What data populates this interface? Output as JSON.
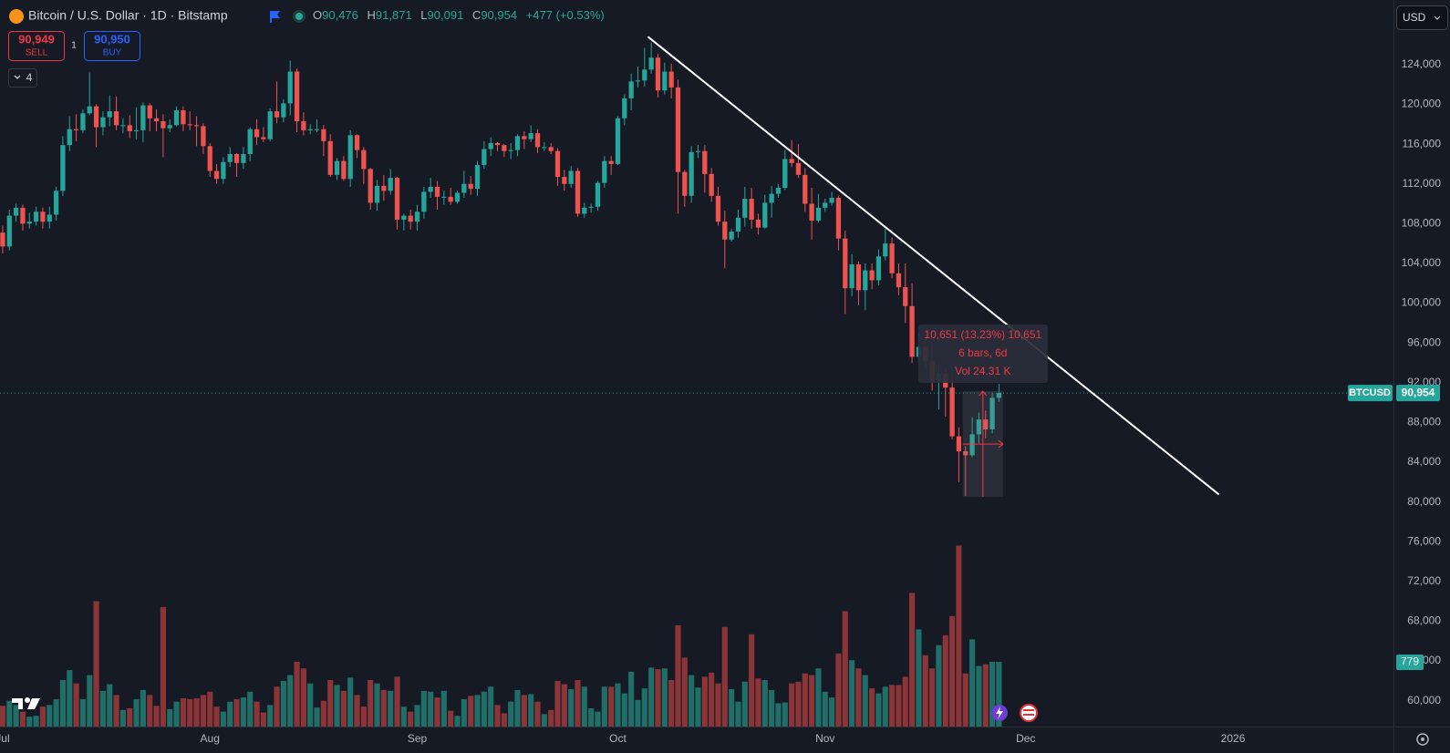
{
  "header": {
    "symbol": "Bitcoin / U.S. Dollar · 1D · Bitstamp",
    "ohlc": [
      {
        "key": "O",
        "label": "90,476"
      },
      {
        "key": "H",
        "label": "91,871"
      },
      {
        "key": "L",
        "label": "90,091"
      },
      {
        "key": "C",
        "label": "90,954"
      }
    ],
    "change": "+477 (+0.53%)",
    "sell": {
      "price": "90,949",
      "label": "SELL"
    },
    "quantity": "1",
    "buy": {
      "price": "90,950",
      "label": "BUY"
    },
    "indicators": "4",
    "currency": "USD"
  },
  "chart_data": {
    "type": "candlestick",
    "open": [
      107100,
      105700,
      108800,
      109600,
      108000,
      108200,
      109200,
      108200,
      108900,
      111300,
      115900,
      117500,
      117400,
      119100,
      119800,
      117700,
      118700,
      119300,
      117900,
      117900,
      117300,
      117400,
      119900,
      118600,
      118300,
      117600,
      117900,
      119400,
      118000,
      117900,
      117800,
      115800,
      113300,
      112500,
      114200,
      115000,
      114100,
      115000,
      117500,
      116700,
      116500,
      119300,
      118700,
      120100,
      123300,
      118300,
      117400,
      117500,
      117500,
      116300,
      112900,
      114300,
      112500,
      116900,
      115400,
      113500,
      110100,
      111800,
      111300,
      112600,
      108400,
      108800,
      108200,
      109200,
      111200,
      111700,
      110700,
      110700,
      110200,
      111100,
      112000,
      111500,
      113900,
      115500,
      116100,
      115900,
      115300,
      115400,
      116800,
      116500,
      117100,
      115700,
      115700,
      115300,
      112700,
      112000,
      113300,
      109000,
      109600,
      109700,
      112100,
      114300,
      114000,
      118600,
      120600,
      122300,
      122400,
      123500,
      124700,
      121400,
      123300,
      121700,
      113200,
      110800,
      115200,
      115300,
      113000,
      110800,
      108200,
      106400,
      107200,
      108600,
      110500,
      108400,
      107600,
      110100,
      111000,
      111600,
      114500,
      114100,
      112900,
      110000,
      108300,
      109600,
      110100,
      110600,
      106500,
      101500,
      103900,
      101300,
      103300,
      102300,
      104700,
      106000,
      103000,
      101600,
      99700,
      94600,
      95600,
      94200,
      92200,
      92900,
      91500,
      86600,
      85100,
      84700,
      86800,
      88300,
      87300,
      90476
    ],
    "high": [
      107800,
      109400,
      110000,
      109900,
      109100,
      109700,
      109600,
      109700,
      111700,
      116800,
      118800,
      119000,
      119500,
      123200,
      120000,
      119300,
      120900,
      120800,
      118600,
      118900,
      119700,
      120200,
      120100,
      119500,
      119000,
      118500,
      119800,
      119800,
      119300,
      118800,
      118100,
      116100,
      114000,
      114700,
      115700,
      115100,
      115700,
      117700,
      118500,
      117700,
      119600,
      122300,
      120500,
      124400,
      123600,
      119200,
      118000,
      118500,
      117900,
      117000,
      114600,
      114800,
      117400,
      117000,
      115700,
      113600,
      112400,
      112900,
      113500,
      112700,
      109000,
      109400,
      109900,
      111700,
      112600,
      112300,
      111300,
      111600,
      111300,
      113300,
      112800,
      114300,
      116300,
      116700,
      116200,
      116000,
      116100,
      117000,
      117300,
      117900,
      117500,
      116200,
      116100,
      115600,
      113400,
      113800,
      113600,
      110100,
      110000,
      112300,
      114800,
      114800,
      118800,
      121000,
      123100,
      123800,
      125700,
      126200,
      125100,
      124200,
      124100,
      122500,
      113400,
      115800,
      115900,
      115900,
      113600,
      111700,
      109300,
      107500,
      109400,
      111700,
      111600,
      109000,
      110900,
      111800,
      112000,
      115400,
      116400,
      116000,
      113600,
      111600,
      111000,
      110500,
      111200,
      110800,
      107300,
      104900,
      104200,
      104000,
      104000,
      105400,
      107500,
      106600,
      104000,
      104000,
      102000,
      97000,
      96600,
      96000,
      93800,
      93400,
      93000,
      87500,
      85600,
      88500,
      89000,
      89200,
      91000,
      91871
    ],
    "low": [
      105000,
      105300,
      108200,
      107300,
      107500,
      107800,
      107500,
      107500,
      108300,
      110800,
      115300,
      116300,
      117100,
      118900,
      115700,
      116900,
      117800,
      117400,
      117100,
      116600,
      116500,
      116200,
      117300,
      117300,
      114700,
      117200,
      117800,
      117300,
      117400,
      115800,
      115000,
      112700,
      112000,
      112000,
      113700,
      112700,
      113500,
      114300,
      115900,
      116200,
      116300,
      118100,
      118200,
      118900,
      117200,
      116900,
      117000,
      117200,
      114800,
      112700,
      112400,
      112300,
      111700,
      114600,
      112000,
      109400,
      109300,
      110300,
      110900,
      107400,
      107300,
      107400,
      107300,
      108500,
      110600,
      109400,
      109900,
      109900,
      110000,
      110600,
      110900,
      110800,
      113500,
      114800,
      115300,
      114700,
      114500,
      114800,
      115500,
      116200,
      115100,
      115300,
      115000,
      111800,
      111300,
      111600,
      108700,
      108600,
      109100,
      109300,
      111600,
      112900,
      113900,
      117900,
      119400,
      121700,
      121800,
      123100,
      120700,
      121000,
      120600,
      109000,
      109700,
      110100,
      114600,
      111100,
      110200,
      107800,
      103500,
      106200,
      106600,
      107700,
      107500,
      106900,
      107500,
      108600,
      110600,
      111400,
      113700,
      112600,
      109200,
      106400,
      108100,
      109200,
      109800,
      105300,
      98900,
      100700,
      99800,
      99300,
      101400,
      101800,
      104300,
      102500,
      100800,
      98000,
      94000,
      94000,
      93500,
      91200,
      89300,
      88600,
      86300,
      82000,
      80600,
      84500,
      85900,
      86400,
      86900,
      90091
    ],
    "close": [
      105700,
      108800,
      109600,
      108000,
      108200,
      109200,
      108200,
      108900,
      111300,
      115900,
      117500,
      117400,
      119100,
      119800,
      117700,
      118700,
      119300,
      117900,
      117900,
      117300,
      117400,
      119900,
      118600,
      118300,
      117600,
      117900,
      119400,
      118000,
      117900,
      117800,
      115800,
      113300,
      112500,
      114200,
      115000,
      114100,
      115000,
      117500,
      116700,
      116500,
      119300,
      118700,
      120100,
      123300,
      118300,
      117400,
      117500,
      117500,
      116300,
      112900,
      114300,
      112500,
      116900,
      115400,
      113500,
      110100,
      111800,
      111300,
      112600,
      108400,
      108800,
      108200,
      109200,
      111200,
      111700,
      110700,
      110700,
      110200,
      111100,
      112000,
      111500,
      113900,
      115500,
      116100,
      115900,
      115300,
      115400,
      116800,
      116500,
      117100,
      115700,
      115700,
      115300,
      112700,
      112000,
      113300,
      109000,
      109600,
      109700,
      112100,
      114300,
      114000,
      118600,
      120600,
      122300,
      122400,
      123500,
      124700,
      121400,
      123300,
      121700,
      113200,
      110800,
      115200,
      115300,
      113000,
      110800,
      108200,
      106400,
      107200,
      108600,
      110500,
      108400,
      107600,
      110100,
      111000,
      111600,
      114500,
      114100,
      112900,
      110000,
      108300,
      109600,
      110100,
      110600,
      106500,
      101500,
      103900,
      101300,
      103300,
      102300,
      104700,
      106000,
      103000,
      101600,
      99700,
      94600,
      95600,
      94200,
      92200,
      92900,
      91500,
      86600,
      85100,
      84700,
      86800,
      88300,
      87300,
      90476,
      90954
    ],
    "volume": [
      250,
      310,
      260,
      180,
      120,
      130,
      240,
      260,
      330,
      560,
      680,
      520,
      330,
      620,
      1510,
      430,
      510,
      380,
      200,
      220,
      330,
      440,
      380,
      250,
      1440,
      210,
      300,
      340,
      330,
      340,
      380,
      420,
      240,
      180,
      300,
      330,
      350,
      420,
      300,
      170,
      260,
      480,
      550,
      620,
      780,
      700,
      520,
      230,
      310,
      560,
      500,
      430,
      590,
      380,
      240,
      560,
      520,
      440,
      430,
      600,
      240,
      180,
      260,
      430,
      420,
      350,
      430,
      190,
      130,
      330,
      370,
      380,
      420,
      480,
      260,
      160,
      300,
      440,
      380,
      390,
      300,
      150,
      200,
      550,
      510,
      450,
      560,
      480,
      220,
      180,
      480,
      480,
      520,
      400,
      660,
      320,
      460,
      710,
      690,
      700,
      560,
      1220,
      830,
      620,
      470,
      600,
      650,
      520,
      1200,
      450,
      300,
      540,
      1110,
      580,
      560,
      440,
      280,
      290,
      520,
      540,
      640,
      620,
      700,
      420,
      350,
      880,
      1390,
      800,
      700,
      620,
      460,
      400,
      480,
      500,
      500,
      600,
      1610,
      1170,
      860,
      700,
      980,
      1100,
      1330,
      2180,
      640,
      1050,
      730,
      750,
      780,
      779
    ],
    "up_color": "#26a69a",
    "down_color": "#ef5350",
    "volume_up_color": "#1f6e68",
    "volume_down_color": "#8c3538",
    "xlim": [
      -0.4,
      208
    ],
    "xticks": [
      {
        "value": 0,
        "label": "Jul"
      },
      {
        "value": 31,
        "label": "Aug"
      },
      {
        "value": 62,
        "label": "Sep"
      },
      {
        "value": 92,
        "label": "Oct"
      },
      {
        "value": 123,
        "label": "Nov"
      },
      {
        "value": 153,
        "label": "Dec"
      },
      {
        "value": 184,
        "label": "2026"
      }
    ],
    "ylim": [
      57400,
      130500
    ],
    "yticks": [
      {
        "value": 60000,
        "label": "60,000"
      },
      {
        "value": 64000,
        "label": "64,000"
      },
      {
        "value": 68000,
        "label": "68,000"
      },
      {
        "value": 72000,
        "label": "72,000"
      },
      {
        "value": 76000,
        "label": "76,000"
      },
      {
        "value": 80000,
        "label": "80,000"
      },
      {
        "value": 84000,
        "label": "84,000"
      },
      {
        "value": 88000,
        "label": "88,000"
      },
      {
        "value": 92000,
        "label": "92,000"
      },
      {
        "value": 96000,
        "label": "96,000"
      },
      {
        "value": 100000,
        "label": "100,000"
      },
      {
        "value": 104000,
        "label": "104,000"
      },
      {
        "value": 108000,
        "label": "108,000"
      },
      {
        "value": 112000,
        "label": "112,000"
      },
      {
        "value": 116000,
        "label": "116,000"
      },
      {
        "value": 120000,
        "label": "120,000"
      },
      {
        "value": 124000,
        "label": "124,000"
      }
    ],
    "y2lim": [
      0,
      8750
    ],
    "price_line": {
      "name": "BTCUSD",
      "label": "90,954",
      "color": "#26a69a"
    },
    "trendline": {
      "x": [
        96.5,
        181.9
      ],
      "y": [
        126800,
        80750
      ],
      "color": "#ffffff"
    },
    "measure": {
      "start": 143.6,
      "end": 149.6,
      "low": 80500,
      "high": 91150,
      "color": "#f23645",
      "lines": [
        "10,651 (13.23%) 10,651",
        "6 bars, 6d",
        "Vol 24.31 K"
      ]
    }
  }
}
